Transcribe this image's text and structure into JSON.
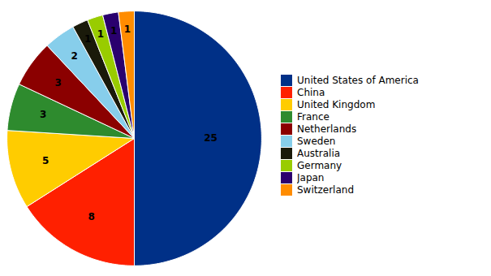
{
  "chart_data": {
    "type": "pie",
    "categories": [
      "United States of America",
      "China",
      "United Kingdom",
      "France",
      "Netherlands",
      "Sweden",
      "Australia",
      "Germany",
      "Japan",
      "Switzerland"
    ],
    "values": [
      25,
      8,
      5,
      3,
      3,
      2,
      1,
      1,
      1,
      1
    ],
    "colors": [
      "#003087",
      "#ff2000",
      "#ffcc00",
      "#2e8b2e",
      "#8b0000",
      "#87ceeb",
      "#1a1a0a",
      "#99cc00",
      "#2a006e",
      "#ff8c00"
    ],
    "data_labels": true,
    "legend": "right",
    "tick_labels": false
  }
}
